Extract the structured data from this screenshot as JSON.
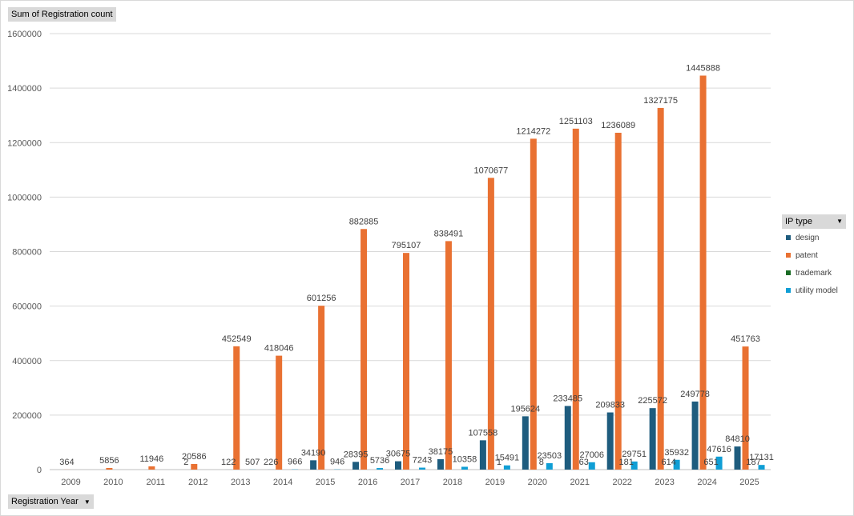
{
  "measure_field": "Sum of Registration count",
  "axis_field": "Registration Year",
  "legend": {
    "title": "IP type",
    "items": [
      {
        "label": "design",
        "color": "#1e5c7e"
      },
      {
        "label": "patent",
        "color": "#e97132"
      },
      {
        "label": "trademark",
        "color": "#196b24"
      },
      {
        "label": "utility model",
        "color": "#0f9ed5"
      }
    ]
  },
  "chart_data": {
    "type": "bar",
    "title": "",
    "xlabel": "",
    "ylabel": "",
    "ylim": [
      0,
      1600000
    ],
    "yticks": [
      "0",
      "200000",
      "400000",
      "600000",
      "800000",
      "1000000",
      "1200000",
      "1400000",
      "1600000"
    ],
    "grid": true,
    "legend_position": "right",
    "categories": [
      "2009",
      "2010",
      "2011",
      "2012",
      "2013",
      "2014",
      "2015",
      "2016",
      "2017",
      "2018",
      "2019",
      "2020",
      "2021",
      "2022",
      "2023",
      "2024",
      "2025"
    ],
    "series": [
      {
        "name": "design",
        "color": "#1e5c7e",
        "values": [
          null,
          null,
          null,
          2,
          122,
          226,
          34190,
          28395,
          30675,
          38175,
          107558,
          195624,
          233485,
          209833,
          225572,
          249778,
          84810
        ]
      },
      {
        "name": "patent",
        "color": "#e97132",
        "values": [
          364,
          5856,
          11946,
          20586,
          452549,
          418046,
          601256,
          882885,
          795107,
          838491,
          1070677,
          1214272,
          1251103,
          1236089,
          1327175,
          1445888,
          451763
        ]
      },
      {
        "name": "trademark",
        "color": "#196b24",
        "values": [
          null,
          null,
          null,
          null,
          null,
          null,
          null,
          null,
          null,
          null,
          1,
          8,
          63,
          181,
          614,
          651,
          187
        ]
      },
      {
        "name": "utility model",
        "color": "#0f9ed5",
        "values": [
          null,
          null,
          null,
          null,
          507,
          966,
          946,
          5736,
          7243,
          10358,
          15491,
          23503,
          27006,
          29751,
          35932,
          47616,
          17131
        ]
      }
    ]
  }
}
